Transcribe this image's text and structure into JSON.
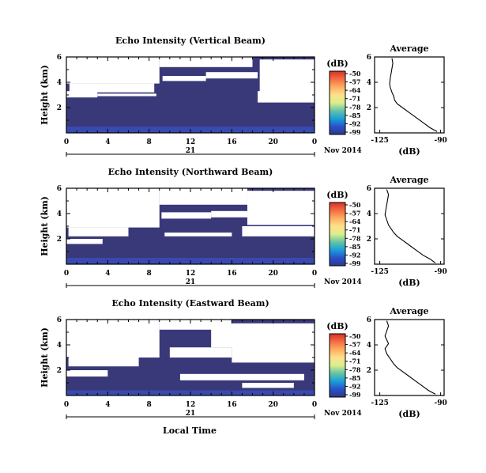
{
  "chart_data": [
    {
      "type": "heatmap",
      "title": "Echo Intensity (Vertical Beam)",
      "ylabel": "Height (km)",
      "xticks": [
        "0",
        "4",
        "8",
        "12",
        "16",
        "20",
        "0"
      ],
      "yticks": [
        "2",
        "4",
        "6"
      ],
      "xlim": [
        0,
        24
      ],
      "ylim": [
        0,
        6
      ],
      "date_center": "21",
      "date_right": "Nov 2014",
      "colorbar_unit": "(dB)",
      "colorbar_ticks": [
        "-50",
        "-57",
        "-64",
        "-71",
        "-78",
        "-85",
        "-92",
        "-99"
      ],
      "colorbar_colors": [
        "#d73027",
        "#f46d43",
        "#fdae61",
        "#fee08b",
        "#d9ef8b",
        "#66c2a5",
        "#1a9fd8",
        "#2b50c8",
        "#2e3788"
      ],
      "background_color": "#39397a",
      "gaps": [
        {
          "x0": 0,
          "x1": 9,
          "y0": 3.9,
          "y1": 6
        },
        {
          "x0": 0.3,
          "x1": 8.5,
          "y0": 3.2,
          "y1": 3.9
        },
        {
          "x0": 9,
          "x1": 18,
          "y0": 5.2,
          "y1": 6
        },
        {
          "x0": 9.3,
          "x1": 13.5,
          "y0": 4.1,
          "y1": 4.5
        },
        {
          "x0": 13.5,
          "x1": 18.5,
          "y0": 4.3,
          "y1": 4.8
        },
        {
          "x0": 18.7,
          "x1": 24,
          "y0": 3.2,
          "y1": 5.8
        },
        {
          "x0": 18.5,
          "x1": 24,
          "y0": 2.4,
          "y1": 3.3
        },
        {
          "x0": 0,
          "x1": 3,
          "y0": 2.8,
          "y1": 3.3
        },
        {
          "x0": 3,
          "x1": 8.7,
          "y0": 2.9,
          "y1": 3.1
        }
      ],
      "strong_echo": {
        "y_max": 0.5,
        "color": "#3a5ad8"
      },
      "profile": {
        "title": "Average",
        "xlabel": "(dB)",
        "xticks": [
          "-125",
          "-90"
        ],
        "yticks": [
          "2",
          "4",
          "6"
        ],
        "xlim": [
          -128,
          -88
        ],
        "ylim": [
          0,
          6
        ],
        "x": [
          -118,
          -117.5,
          -118,
          -118.5,
          -119,
          -119.3,
          -119,
          -118,
          -117,
          -116.5,
          -115,
          -112,
          -108,
          -104,
          -100,
          -96,
          -92
        ],
        "y": [
          5.9,
          5.5,
          5.1,
          4.7,
          4.3,
          3.9,
          3.6,
          3.2,
          2.9,
          2.6,
          2.3,
          2.0,
          1.6,
          1.2,
          0.8,
          0.4,
          0.1
        ]
      }
    },
    {
      "type": "heatmap",
      "title": "Echo Intensity (Northward Beam)",
      "ylabel": "Height (km)",
      "xticks": [
        "0",
        "4",
        "8",
        "12",
        "16",
        "20",
        "0"
      ],
      "yticks": [
        "2",
        "4",
        "6"
      ],
      "xlim": [
        0,
        24
      ],
      "ylim": [
        0,
        6
      ],
      "date_center": "21",
      "date_right": "Nov 2014",
      "colorbar_unit": "(dB)",
      "colorbar_ticks": [
        "-50",
        "-57",
        "-64",
        "-71",
        "-78",
        "-85",
        "-92",
        "-99"
      ],
      "colorbar_colors": [
        "#d73027",
        "#f46d43",
        "#fdae61",
        "#fee08b",
        "#d9ef8b",
        "#66c2a5",
        "#1a9fd8",
        "#2b50c8",
        "#2e3788"
      ],
      "background_color": "#39397a",
      "gaps": [
        {
          "x0": 0,
          "x1": 9,
          "y0": 2.9,
          "y1": 6
        },
        {
          "x0": 0.2,
          "x1": 6,
          "y0": 2.2,
          "y1": 2.9
        },
        {
          "x0": 9,
          "x1": 17.5,
          "y0": 4.7,
          "y1": 6
        },
        {
          "x0": 9.2,
          "x1": 14,
          "y0": 3.6,
          "y1": 4.1
        },
        {
          "x0": 14,
          "x1": 18,
          "y0": 3.7,
          "y1": 4.2
        },
        {
          "x0": 17.5,
          "x1": 24,
          "y0": 3.1,
          "y1": 5.8
        },
        {
          "x0": 17,
          "x1": 24,
          "y0": 2.2,
          "y1": 3.0
        },
        {
          "x0": 0,
          "x1": 3.5,
          "y0": 1.6,
          "y1": 2.0
        },
        {
          "x0": 9.5,
          "x1": 16,
          "y0": 2.2,
          "y1": 2.5
        }
      ],
      "strong_echo": {
        "y_max": 0.5,
        "color": "#3a5ad8"
      },
      "profile": {
        "title": "Average",
        "xlabel": "(dB)",
        "xticks": [
          "-125",
          "-90"
        ],
        "yticks": [
          "2",
          "4",
          "6"
        ],
        "xlim": [
          -128,
          -88
        ],
        "ylim": [
          0,
          6
        ],
        "x": [
          -121,
          -120,
          -120.5,
          -121,
          -121.5,
          -122,
          -121,
          -120,
          -118.5,
          -117,
          -115,
          -112,
          -108,
          -104,
          -100,
          -96,
          -93
        ],
        "y": [
          5.9,
          5.5,
          5.1,
          4.7,
          4.3,
          3.9,
          3.5,
          3.1,
          2.8,
          2.5,
          2.2,
          1.9,
          1.5,
          1.1,
          0.7,
          0.4,
          0.1
        ]
      }
    },
    {
      "type": "heatmap",
      "title": "Echo Intensity (Eastward Beam)",
      "ylabel": "Height (km)",
      "xticks": [
        "0",
        "4",
        "8",
        "12",
        "16",
        "20",
        "0"
      ],
      "yticks": [
        "2",
        "4",
        "6"
      ],
      "xlim": [
        0,
        24
      ],
      "ylim": [
        0,
        6
      ],
      "date_center": "21",
      "date_right": "Nov 2014",
      "colorbar_unit": "(dB)",
      "colorbar_ticks": [
        "-50",
        "-57",
        "-64",
        "-71",
        "-78",
        "-85",
        "-92",
        "-99"
      ],
      "colorbar_colors": [
        "#d73027",
        "#f46d43",
        "#fdae61",
        "#fee08b",
        "#d9ef8b",
        "#66c2a5",
        "#1a9fd8",
        "#2b50c8",
        "#2e3788"
      ],
      "background_color": "#39397a",
      "gaps": [
        {
          "x0": 0,
          "x1": 9,
          "y0": 3.0,
          "y1": 6
        },
        {
          "x0": 0.2,
          "x1": 7,
          "y0": 2.3,
          "y1": 3.0
        },
        {
          "x0": 9,
          "x1": 16,
          "y0": 5.2,
          "y1": 6
        },
        {
          "x0": 10,
          "x1": 16,
          "y0": 3.0,
          "y1": 3.8
        },
        {
          "x0": 14,
          "x1": 24,
          "y0": 3.8,
          "y1": 5.7
        },
        {
          "x0": 16,
          "x1": 24,
          "y0": 2.6,
          "y1": 3.9
        },
        {
          "x0": 11,
          "x1": 23,
          "y0": 1.2,
          "y1": 1.7
        },
        {
          "x0": 0,
          "x1": 4,
          "y0": 1.5,
          "y1": 2.0
        },
        {
          "x0": 17,
          "x1": 22,
          "y0": 0.6,
          "y1": 1.0
        }
      ],
      "strong_echo": {
        "y_max": 0.4,
        "color": "#3a5ad8"
      },
      "profile": {
        "title": "Average",
        "xlabel": "(dB)",
        "xticks": [
          "-125",
          "-90"
        ],
        "yticks": [
          "2",
          "4",
          "6"
        ],
        "xlim": [
          -128,
          -88
        ],
        "ylim": [
          0,
          6
        ],
        "x": [
          -121,
          -120,
          -121,
          -122,
          -121,
          -120,
          -122,
          -121,
          -119,
          -117,
          -115,
          -112,
          -108,
          -104,
          -100,
          -97,
          -93
        ],
        "y": [
          5.9,
          5.5,
          5.1,
          4.7,
          4.4,
          4.1,
          3.7,
          3.3,
          2.9,
          2.5,
          2.2,
          1.9,
          1.5,
          1.1,
          0.7,
          0.4,
          0.1
        ]
      }
    }
  ],
  "footer": {
    "xlabel": "Local Time"
  }
}
